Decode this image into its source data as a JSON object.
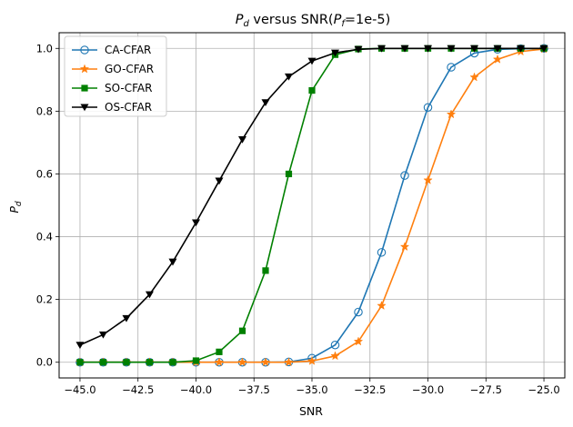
{
  "chart_data": {
    "type": "line",
    "title_main": "P",
    "title_main_sub": "d",
    "title_mid": " versus SNR(",
    "title_pf": "P",
    "title_pf_sub": "f",
    "title_tail": "=1e-5)",
    "xlabel": "SNR",
    "ylabel": "P",
    "ylabel_sub": "d",
    "xlim": [
      -45.9,
      -24.1
    ],
    "ylim": [
      -0.05,
      1.05
    ],
    "xticks": [
      -45.0,
      -42.5,
      -40.0,
      -37.5,
      -35.0,
      -32.5,
      -30.0,
      -27.5,
      -25.0
    ],
    "xtick_labels": [
      "−45.0",
      "−42.5",
      "−40.0",
      "−37.5",
      "−35.0",
      "−32.5",
      "−30.0",
      "−27.5",
      "−25.0"
    ],
    "yticks": [
      0.0,
      0.2,
      0.4,
      0.6,
      0.8,
      1.0
    ],
    "ytick_labels": [
      "0.0",
      "0.2",
      "0.4",
      "0.6",
      "0.8",
      "1.0"
    ],
    "grid": true,
    "legend_position": "top-left",
    "x": [
      -45,
      -44,
      -43,
      -42,
      -41,
      -40,
      -39,
      -38,
      -37,
      -36,
      -35,
      -34,
      -33,
      -32,
      -31,
      -30,
      -29,
      -28,
      -27,
      -26,
      -25
    ],
    "series": [
      {
        "name": "CA-CFAR",
        "color": "#1f77b4",
        "marker": "circle-open",
        "values": [
          0.0,
          0.0,
          0.0,
          0.0,
          0.0,
          0.0,
          0.0,
          0.0,
          0.0,
          0.001,
          0.013,
          0.055,
          0.16,
          0.35,
          0.595,
          0.812,
          0.94,
          0.985,
          0.997,
          0.999,
          1.0
        ]
      },
      {
        "name": "GO-CFAR",
        "color": "#ff7f0e",
        "marker": "star",
        "values": [
          0.0,
          0.0,
          0.0,
          0.0,
          0.0,
          0.0,
          0.0,
          0.0,
          0.0,
          0.0,
          0.004,
          0.02,
          0.066,
          0.18,
          0.368,
          0.58,
          0.79,
          0.908,
          0.965,
          0.99,
          0.998
        ]
      },
      {
        "name": "SO-CFAR",
        "color": "#008000",
        "marker": "square",
        "values": [
          0.0,
          0.0,
          0.0,
          0.0,
          0.0,
          0.005,
          0.033,
          0.1,
          0.292,
          0.6,
          0.866,
          0.98,
          0.998,
          1.0,
          1.0,
          1.0,
          1.0,
          1.0,
          1.0,
          1.0,
          1.0
        ]
      },
      {
        "name": "OS-CFAR",
        "color": "#000000",
        "marker": "triangle-down",
        "values": [
          0.055,
          0.088,
          0.14,
          0.216,
          0.32,
          0.445,
          0.578,
          0.71,
          0.828,
          0.91,
          0.96,
          0.986,
          0.997,
          1.0,
          1.0,
          1.0,
          1.0,
          1.0,
          1.0,
          1.0,
          1.0
        ]
      }
    ]
  }
}
